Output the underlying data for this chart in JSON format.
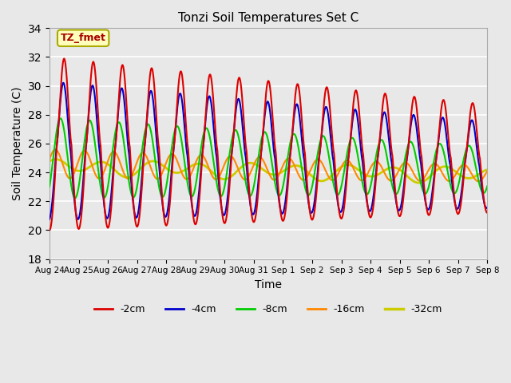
{
  "title": "Tonzi Soil Temperatures Set C",
  "xlabel": "Time",
  "ylabel": "Soil Temperature (C)",
  "ylim": [
    18,
    34
  ],
  "yticks": [
    18,
    20,
    22,
    24,
    26,
    28,
    30,
    32,
    34
  ],
  "xtick_labels": [
    "Aug 24",
    "Aug 25",
    "Aug 26",
    "Aug 27",
    "Aug 28",
    "Aug 29",
    "Aug 30",
    "Aug 31",
    "Sep 1",
    "Sep 2",
    "Sep 3",
    "Sep 4",
    "Sep 5",
    "Sep 6",
    "Sep 7",
    "Sep 8"
  ],
  "legend_labels": [
    "-2cm",
    "-4cm",
    "-8cm",
    "-16cm",
    "-32cm"
  ],
  "line_colors": [
    "#dd0000",
    "#0000cc",
    "#00cc00",
    "#ff8800",
    "#cccc00"
  ],
  "line_widths": [
    1.5,
    1.5,
    1.5,
    1.5,
    2.0
  ],
  "annotation_text": "TZ_fmet",
  "annotation_color": "#aa0000",
  "annotation_bg": "#ffffbb",
  "annotation_border": "#aaaa00",
  "bg_color": "#e8e8e8",
  "n_days": 15,
  "samples_per_day": 144
}
